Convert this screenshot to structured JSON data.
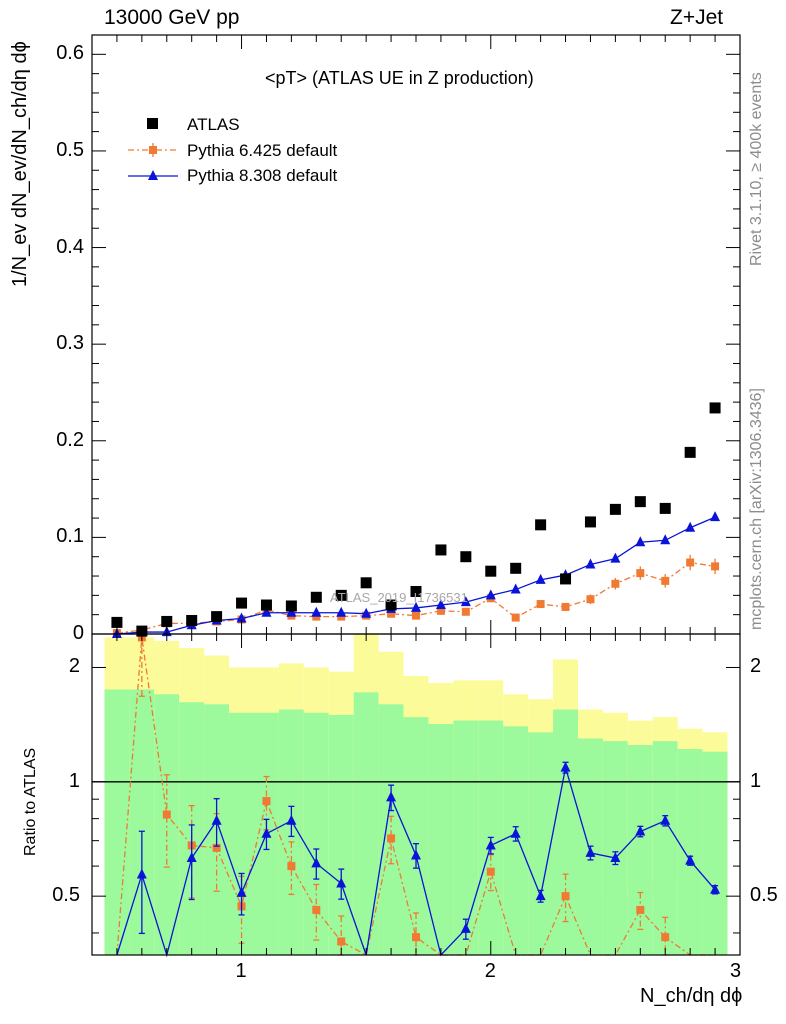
{
  "header": {
    "energy_label": "13000 GeV pp",
    "process_label": "Z+Jet",
    "title": "<pT> (ATLAS UE in Z production)",
    "watermark": "ATLAS_2019_I1736531"
  },
  "side_labels": {
    "rivet": "Rivet 3.1.10, ≥ 400k events",
    "mcplots": "mcplots.cern.ch [arXiv:1306.3436]"
  },
  "axes": {
    "main_ylabel": "1/N_ev dN_ev/dN_ch/dη dϕ",
    "ratio_ylabel": "Ratio to ATLAS",
    "xlabel": "N_ch/dη dϕ",
    "main_yticks": [
      "0",
      "0.1",
      "0.2",
      "0.3",
      "0.4",
      "0.5",
      "0.6"
    ],
    "ratio_yticks": [
      "0.5",
      "1",
      "2"
    ],
    "xticks": [
      "1",
      "2",
      "3"
    ]
  },
  "legend": {
    "atlas": "ATLAS",
    "py6": "Pythia 6.425 default",
    "py8": "Pythia 8.308 default"
  },
  "colors": {
    "atlas": "#000000",
    "py6": "#f07a32",
    "py8": "#0a14d8",
    "band_green": "#9cfa9c",
    "band_yellow": "#fbfb99"
  },
  "chart_data": {
    "type": "scatter",
    "xlim": [
      0.4,
      3.0
    ],
    "ylim": [
      0,
      0.62
    ],
    "ratio_ylim": [
      0.35,
      2.45
    ],
    "ratio_scale": "log",
    "x": [
      0.5,
      0.6,
      0.7,
      0.8,
      0.9,
      1.0,
      1.1,
      1.2,
      1.3,
      1.4,
      1.5,
      1.6,
      1.7,
      1.8,
      1.9,
      2.0,
      2.1,
      2.2,
      2.3,
      2.4,
      2.5,
      2.6,
      2.7,
      2.8,
      2.9
    ],
    "series": [
      {
        "name": "ATLAS",
        "values": [
          0.012,
          0.003,
          0.013,
          0.014,
          0.018,
          0.032,
          0.03,
          0.029,
          0.038,
          0.04,
          0.053,
          0.03,
          0.044,
          0.087,
          0.08,
          0.065,
          0.068,
          0.113,
          0.057,
          0.116,
          0.129,
          0.137,
          0.13,
          0.188,
          0.234
        ],
        "band_green_low": [
          0.35,
          0.35,
          0.35,
          0.35,
          0.35,
          0.35,
          0.35,
          0.35,
          0.35,
          0.35,
          0.35,
          0.35,
          0.35,
          0.35,
          0.35,
          0.35,
          0.35,
          0.35,
          0.35,
          0.35,
          0.35,
          0.35,
          0.35,
          0.35,
          0.35
        ],
        "band_green_high": [
          1.75,
          1.75,
          1.7,
          1.62,
          1.6,
          1.52,
          1.52,
          1.55,
          1.52,
          1.5,
          1.72,
          1.6,
          1.48,
          1.42,
          1.45,
          1.45,
          1.4,
          1.35,
          1.55,
          1.3,
          1.28,
          1.25,
          1.28,
          1.22,
          1.2
        ],
        "band_yellow_low": [
          0.35,
          0.35,
          0.35,
          0.35,
          0.35,
          0.35,
          0.35,
          0.35,
          0.35,
          0.35,
          0.35,
          0.35,
          0.35,
          0.35,
          0.35,
          0.35,
          0.35,
          0.35,
          0.35,
          0.57,
          0.52,
          0.5,
          0.55,
          0.7,
          0.72
        ],
        "band_yellow_high": [
          2.4,
          2.4,
          2.35,
          2.25,
          2.15,
          2.0,
          2.0,
          2.05,
          2.0,
          1.95,
          2.45,
          2.2,
          1.9,
          1.82,
          1.85,
          1.85,
          1.7,
          1.65,
          2.1,
          1.55,
          1.52,
          1.45,
          1.48,
          1.38,
          1.35
        ]
      },
      {
        "name": "Pythia 6.425 default",
        "values": [
          0.001,
          0.004,
          0.011,
          0.011,
          0.013,
          0.015,
          0.025,
          0.019,
          0.018,
          0.018,
          0.019,
          0.021,
          0.019,
          0.024,
          0.023,
          0.037,
          0.017,
          0.031,
          0.028,
          0.036,
          0.052,
          0.063,
          0.055,
          0.074,
          0.07
        ],
        "errors": [
          0.002,
          0.003,
          0.003,
          0.003,
          0.003,
          0.003,
          0.004,
          0.003,
          0.003,
          0.003,
          0.003,
          0.003,
          0.003,
          0.003,
          0.003,
          0.004,
          0.003,
          0.004,
          0.004,
          0.005,
          0.006,
          0.007,
          0.007,
          0.008,
          0.008
        ],
        "ratio": [
          0.3,
          2.4,
          0.82,
          0.68,
          0.67,
          0.47,
          0.89,
          0.6,
          0.46,
          0.38,
          0.3,
          0.71,
          0.39,
          0.3,
          0.3,
          0.58,
          0.3,
          0.3,
          0.5,
          0.3,
          0.3,
          0.46,
          0.39,
          0.3,
          0.3
        ]
      },
      {
        "name": "Pythia 8.308 default",
        "values": [
          0.0,
          0.002,
          0.002,
          0.009,
          0.014,
          0.016,
          0.022,
          0.022,
          0.022,
          0.022,
          0.021,
          0.026,
          0.027,
          0.03,
          0.033,
          0.04,
          0.046,
          0.056,
          0.061,
          0.072,
          0.078,
          0.095,
          0.097,
          0.11,
          0.121
        ],
        "errors": [
          0.001,
          0.001,
          0.001,
          0.002,
          0.002,
          0.002,
          0.002,
          0.002,
          0.002,
          0.002,
          0.002,
          0.002,
          0.002,
          0.002,
          0.002,
          0.002,
          0.002,
          0.002,
          0.002,
          0.003,
          0.003,
          0.003,
          0.003,
          0.003,
          0.003
        ],
        "ratio": [
          0.3,
          0.57,
          0.3,
          0.63,
          0.79,
          0.51,
          0.73,
          0.79,
          0.61,
          0.54,
          0.3,
          0.91,
          0.64,
          0.3,
          0.41,
          0.68,
          0.73,
          0.5,
          1.09,
          0.65,
          0.63,
          0.74,
          0.79,
          0.62,
          0.52
        ]
      }
    ]
  }
}
